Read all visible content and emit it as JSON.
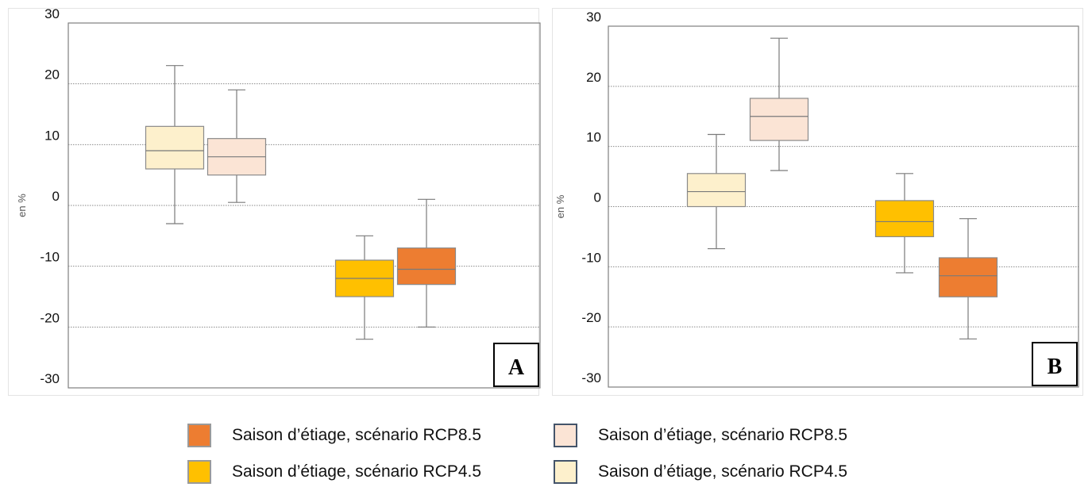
{
  "chart_data": [
    {
      "type": "box",
      "panel_label": "A",
      "ylabel": "en %",
      "ylim": [
        -30,
        30
      ],
      "yticks": [
        30,
        20,
        10,
        0,
        -10,
        -20,
        -30
      ],
      "grid": true,
      "boxes": [
        {
          "color": "#fdf0cc",
          "whisker_low": -3,
          "q1": 6,
          "median": 9,
          "q3": 13,
          "whisker_high": 23
        },
        {
          "color": "#fbe4d5",
          "whisker_low": 0.5,
          "q1": 5,
          "median": 8,
          "q3": 11,
          "whisker_high": 19
        },
        {
          "color": "#ffc000",
          "whisker_low": -22,
          "q1": -15,
          "median": -12,
          "q3": -9,
          "whisker_high": -5
        },
        {
          "color": "#ed7d31",
          "whisker_low": -20,
          "q1": -13,
          "median": -10.5,
          "q3": -7,
          "whisker_high": 1
        }
      ]
    },
    {
      "type": "box",
      "panel_label": "B",
      "ylabel": "en %",
      "ylim": [
        -30,
        30
      ],
      "yticks": [
        30,
        20,
        10,
        0,
        -10,
        -20,
        -30
      ],
      "grid": true,
      "boxes": [
        {
          "color": "#fdf0cc",
          "whisker_low": -7,
          "q1": 0,
          "median": 2.5,
          "q3": 5.5,
          "whisker_high": 12
        },
        {
          "color": "#fbe4d5",
          "whisker_low": 6,
          "q1": 11,
          "median": 15,
          "q3": 18,
          "whisker_high": 28
        },
        {
          "color": "#ffc000",
          "whisker_low": -11,
          "q1": -5,
          "median": -2.5,
          "q3": 1,
          "whisker_high": 5.5
        },
        {
          "color": "#ed7d31",
          "whisker_low": -22,
          "q1": -15,
          "median": -11.5,
          "q3": -8.5,
          "whisker_high": -2
        }
      ]
    }
  ],
  "legend": [
    {
      "label": "Saison d’étiage, scénario RCP8.5",
      "fill": "#ed7d31",
      "border": "#9a9a9a"
    },
    {
      "label": "Saison d’étiage, scénario RCP8.5",
      "fill": "#fbe4d5",
      "border": "#44546a"
    },
    {
      "label": "Saison d’étiage, scénario RCP4.5",
      "fill": "#ffc000",
      "border": "#9a9a9a"
    },
    {
      "label": "Saison d’étiage, scénario RCP4.5",
      "fill": "#fdf0cc",
      "border": "#44546a"
    }
  ]
}
